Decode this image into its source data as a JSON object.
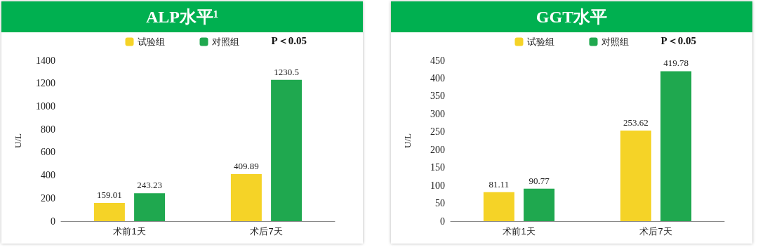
{
  "chart_data": [
    {
      "type": "bar",
      "title": "ALP水平¹",
      "ylabel": "U/L",
      "categories": [
        "术前1天",
        "术后7天"
      ],
      "series": [
        {
          "name": "试验组",
          "color": "#f5d327",
          "values": [
            159.01,
            409.89
          ]
        },
        {
          "name": "对照组",
          "color": "#1fa84f",
          "values": [
            243.23,
            1230.5
          ]
        }
      ],
      "ylim": [
        0,
        1400
      ],
      "yticks": [
        0,
        200,
        400,
        600,
        800,
        1000,
        1200,
        1400
      ],
      "grid": false,
      "legend": "top",
      "data_labels": true,
      "annotations": [
        "P＜0.05"
      ]
    },
    {
      "type": "bar",
      "title": "GGT水平",
      "ylabel": "U/L",
      "categories": [
        "术前1天",
        "术后7天"
      ],
      "series": [
        {
          "name": "试验组",
          "color": "#f5d327",
          "values": [
            81.11,
            253.62
          ]
        },
        {
          "name": "对照组",
          "color": "#1fa84f",
          "values": [
            90.77,
            419.78
          ]
        }
      ],
      "ylim": [
        0,
        450
      ],
      "yticks": [
        0,
        50,
        100,
        150,
        200,
        250,
        300,
        350,
        400,
        450
      ],
      "grid": false,
      "legend": "top",
      "data_labels": true,
      "annotations": [
        "P＜0.05"
      ]
    }
  ]
}
